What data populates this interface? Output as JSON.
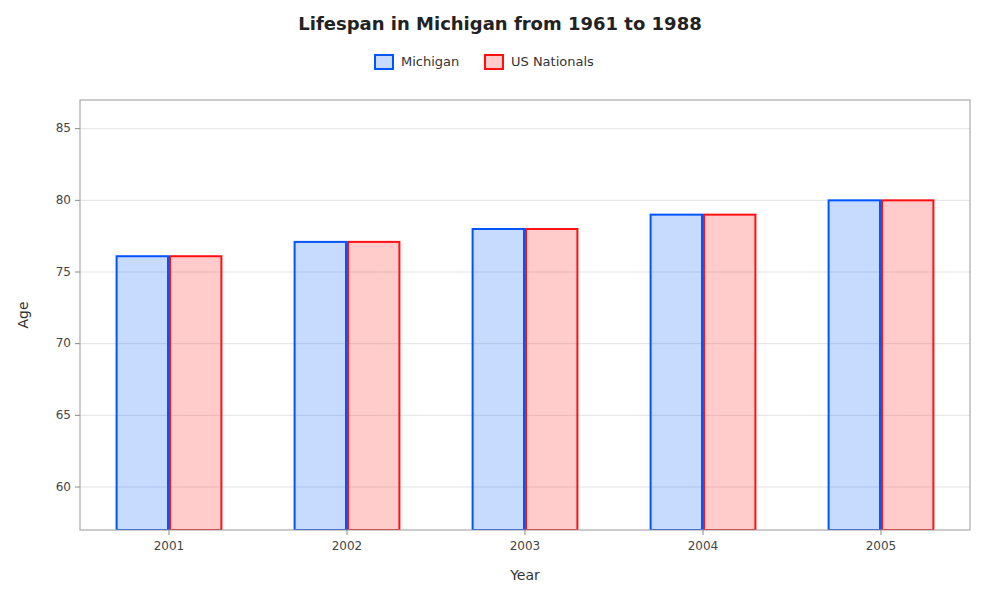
{
  "chart_data": {
    "type": "bar",
    "title": "Lifespan in Michigan from 1961 to 1988",
    "xlabel": "Year",
    "ylabel": "Age",
    "categories": [
      "2001",
      "2002",
      "2003",
      "2004",
      "2005"
    ],
    "series": [
      {
        "name": "Michigan",
        "color": "#0055ff",
        "values": [
          76.1,
          77.1,
          78.0,
          79.0,
          80.0
        ]
      },
      {
        "name": "US Nationals",
        "color": "#ff1111",
        "values": [
          76.1,
          77.1,
          78.0,
          79.0,
          80.0
        ]
      }
    ],
    "ylim": [
      57,
      87
    ],
    "yticks": [
      60,
      65,
      70,
      75,
      80,
      85
    ],
    "grid": true,
    "legend": "top"
  }
}
